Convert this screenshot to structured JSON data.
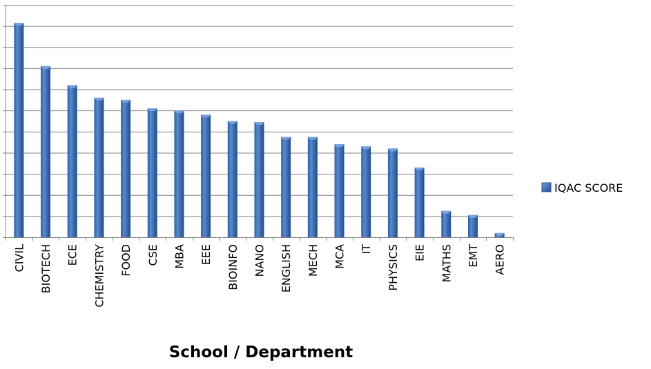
{
  "chart_data": {
    "type": "bar",
    "title": "",
    "xlabel": "School / Department",
    "ylabel": "",
    "ylim": [
      0,
      11
    ],
    "grid": true,
    "legend_position": "right",
    "categories": [
      "CIVIL",
      "BIOTECH",
      "ECE",
      "CHEMISTRY",
      "FOOD",
      "CSE",
      "MBA",
      "EEE",
      "BIOINFO",
      "NANO",
      "ENGLISH",
      "MECH",
      "MCA",
      "IT",
      "PHYSICS",
      "EIE",
      "MATHS",
      "EMT",
      "AERO"
    ],
    "series": [
      {
        "name": "IQAC SCORE",
        "color": "#3f6fb4",
        "values": [
          10.15,
          8.1,
          7.2,
          6.6,
          6.5,
          6.1,
          6.0,
          5.8,
          5.5,
          5.45,
          4.75,
          4.75,
          4.4,
          4.3,
          4.2,
          3.3,
          1.25,
          1.05,
          0.2
        ]
      }
    ]
  }
}
